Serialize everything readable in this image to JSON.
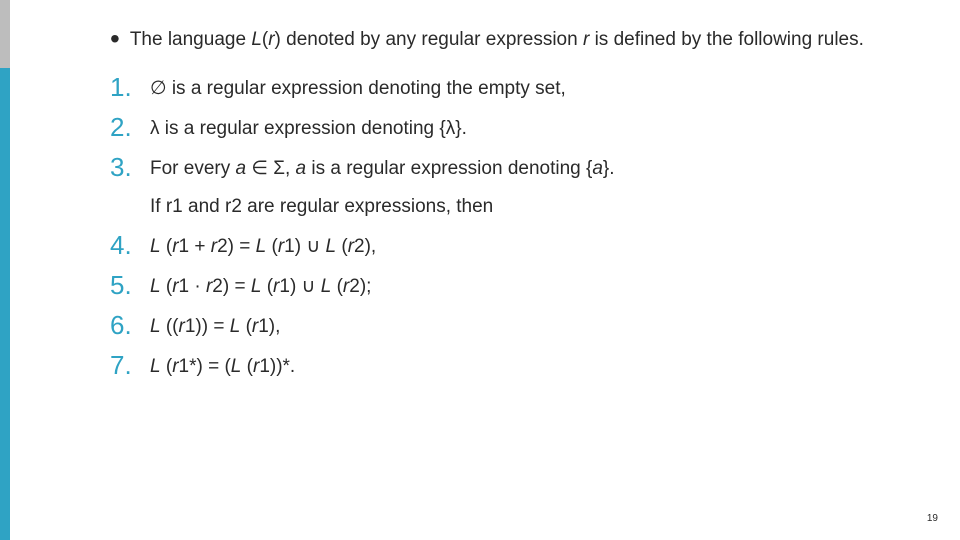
{
  "accent": {
    "top_color": "#bdbdbd",
    "bottom_color": "#2fa3c4"
  },
  "num_color": "#2fa3c4",
  "intro": {
    "bullet": "•",
    "prefix": "The language ",
    "funcL": "L",
    "paren_open": "(",
    "var_r": "r",
    "paren_close": ")",
    "mid1": " denoted by any regular expression ",
    "var_r2": "r",
    "tail": " is defined by the following rules."
  },
  "items": [
    {
      "num": "1.",
      "text_html": "∅ is a regular expression denoting the empty set,"
    },
    {
      "num": "2.",
      "text_html": "λ is a regular expression denoting {λ}."
    },
    {
      "num": "3.",
      "text_html": "For every <span class=\"italic\">a</span> ∈ Σ, <span class=\"italic\">a</span> is a regular expression denoting {<span class=\"italic\">a</span>}."
    }
  ],
  "bridge": "If r1 and r2 are regular expressions, then",
  "items2": [
    {
      "num": "4.",
      "text_html": "<span class=\"italic\">L</span> (<span class=\"italic\">r</span>1 + <span class=\"italic\">r</span>2) = <span class=\"italic\">L</span> (<span class=\"italic\">r</span>1) ∪ <span class=\"italic\">L</span> (<span class=\"italic\">r</span>2),"
    },
    {
      "num": "5.",
      "text_html": "<span class=\"italic\">L</span> (<span class=\"italic\">r</span>1 · <span class=\"italic\">r</span>2) = <span class=\"italic\">L</span> (<span class=\"italic\">r</span>1) ∪ <span class=\"italic\">L</span> (<span class=\"italic\">r</span>2);"
    },
    {
      "num": "6.",
      "text_html": "<span class=\"italic\">L</span> ((<span class=\"italic\">r</span>1)) = <span class=\"italic\">L</span> (<span class=\"italic\">r</span>1),"
    },
    {
      "num": "7.",
      "text_html": "<span class=\"italic\">L</span> (<span class=\"italic\">r</span>1*) = (<span class=\"italic\">L</span> (<span class=\"italic\">r</span>1))*."
    }
  ],
  "page_number": "19"
}
